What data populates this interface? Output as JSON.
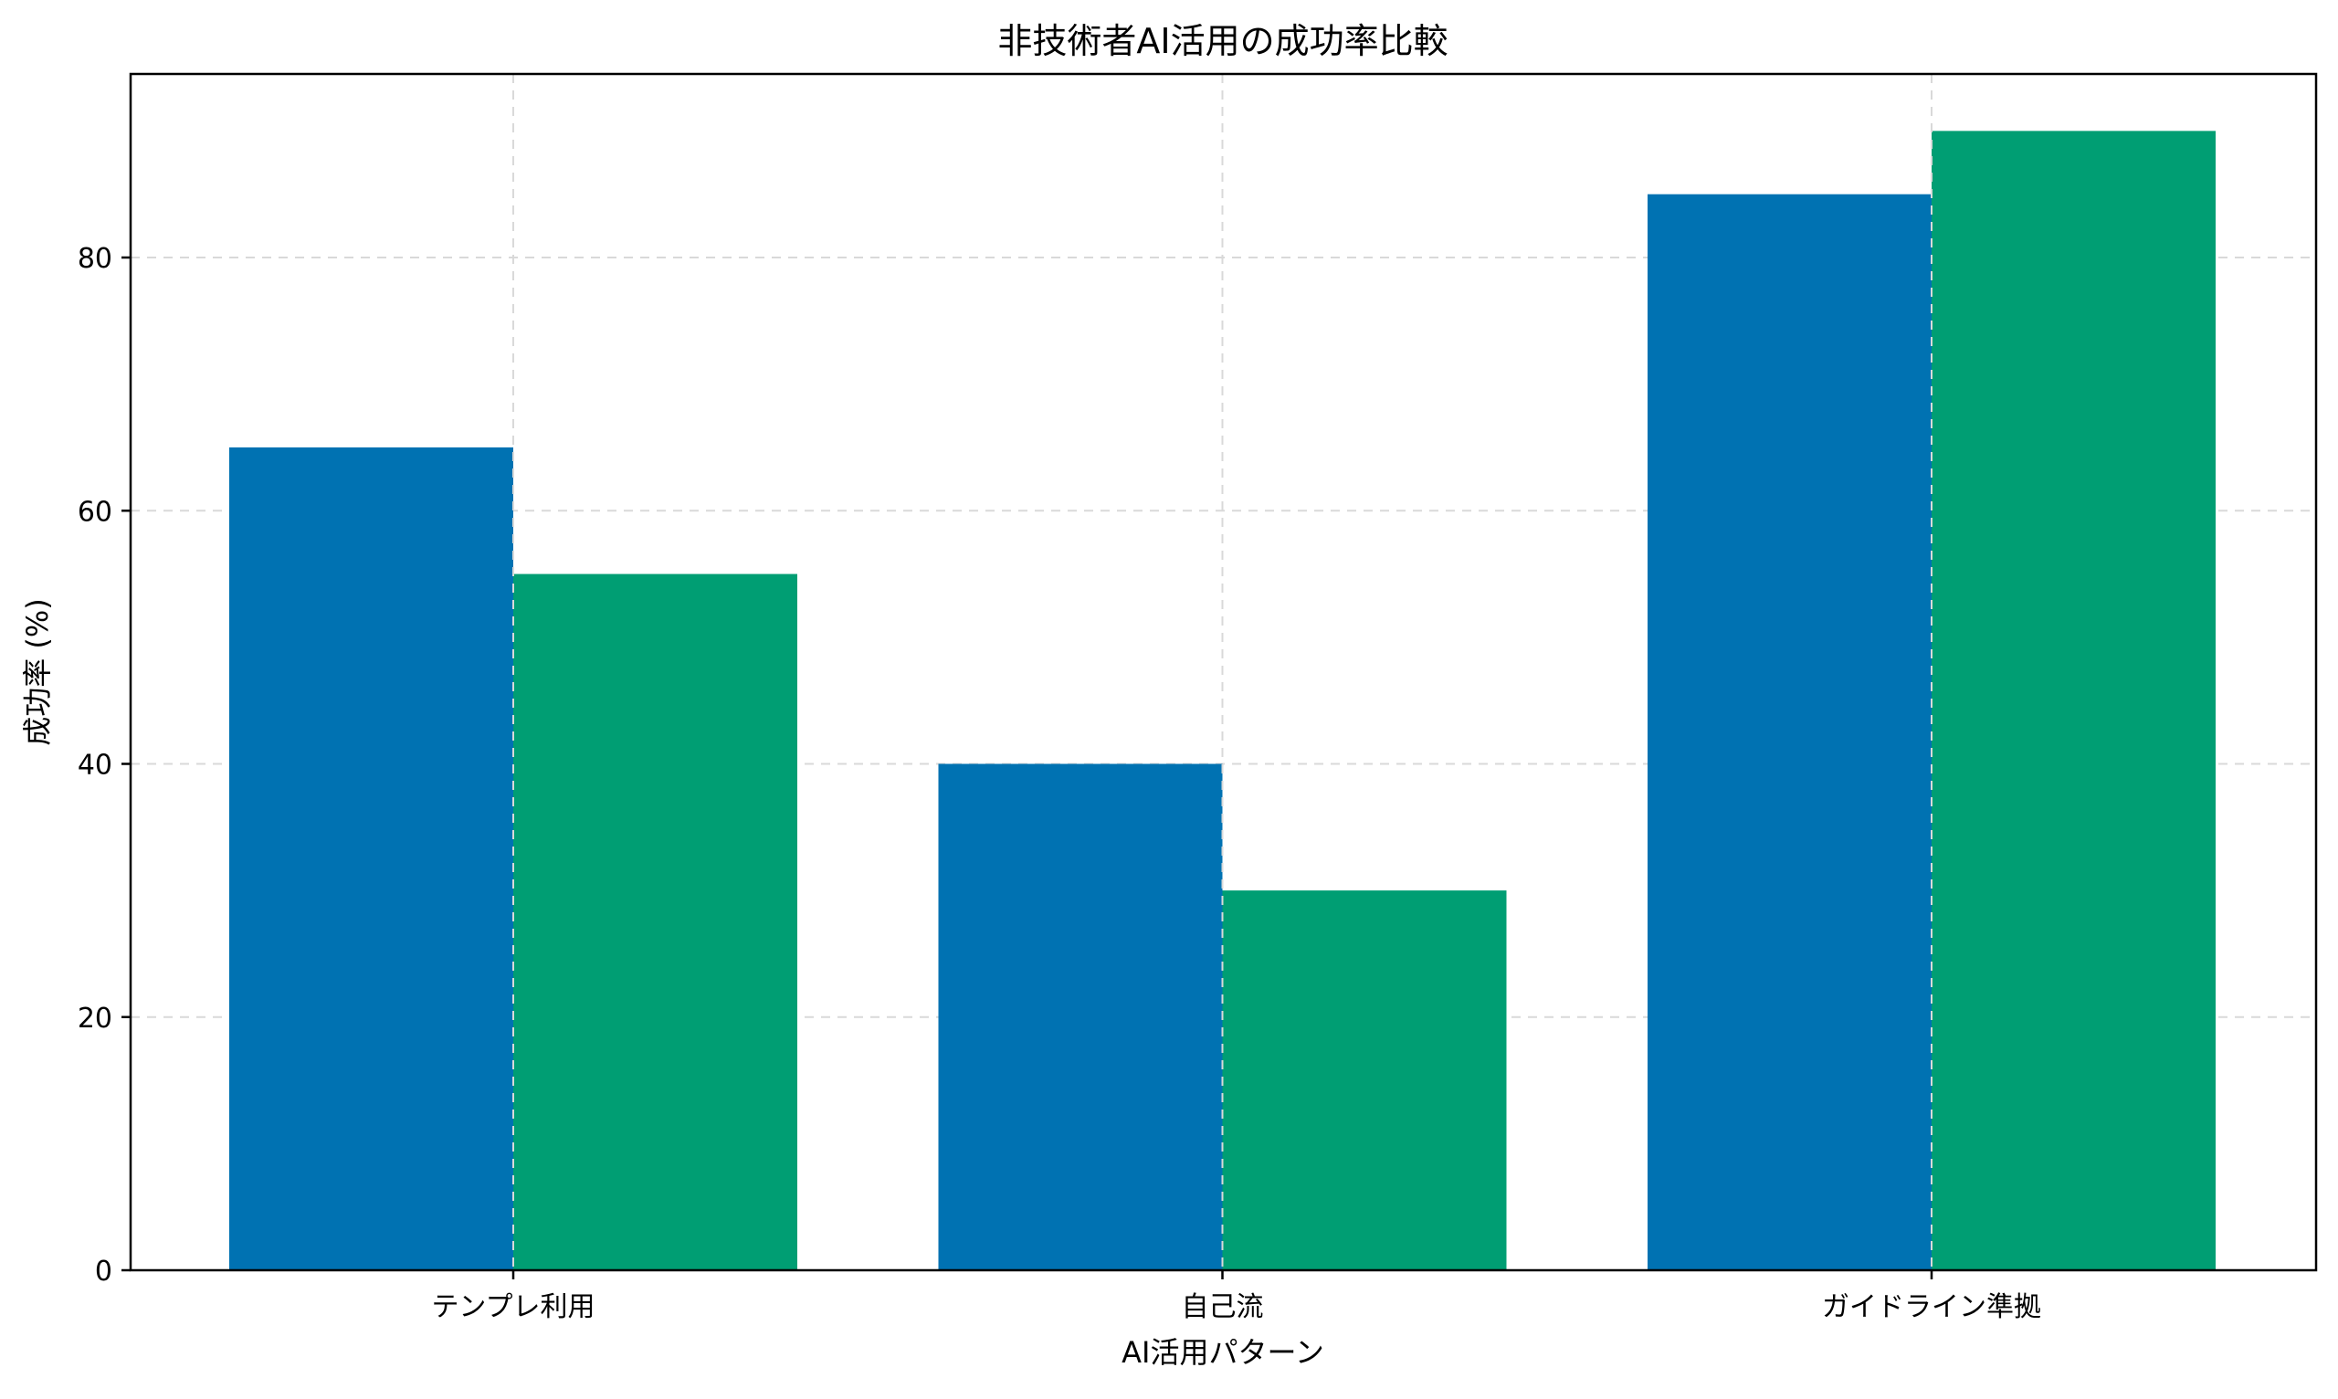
{
  "chart_data": {
    "type": "bar",
    "title": "非技術者AI活用の成功率比較",
    "xlabel": "AI活用パターン",
    "ylabel": "成功率 (%)",
    "categories": [
      "テンプレ利用",
      "自己流",
      "ガイドライン準拠"
    ],
    "series": [
      {
        "values": [
          65,
          40,
          85
        ],
        "color": "#0072B2"
      },
      {
        "values": [
          55,
          30,
          90
        ],
        "color": "#009E73"
      }
    ],
    "ylim": [
      0,
      94.5
    ],
    "yticks": [
      0,
      20,
      40,
      60,
      80
    ],
    "grid": true,
    "legend": "none"
  }
}
